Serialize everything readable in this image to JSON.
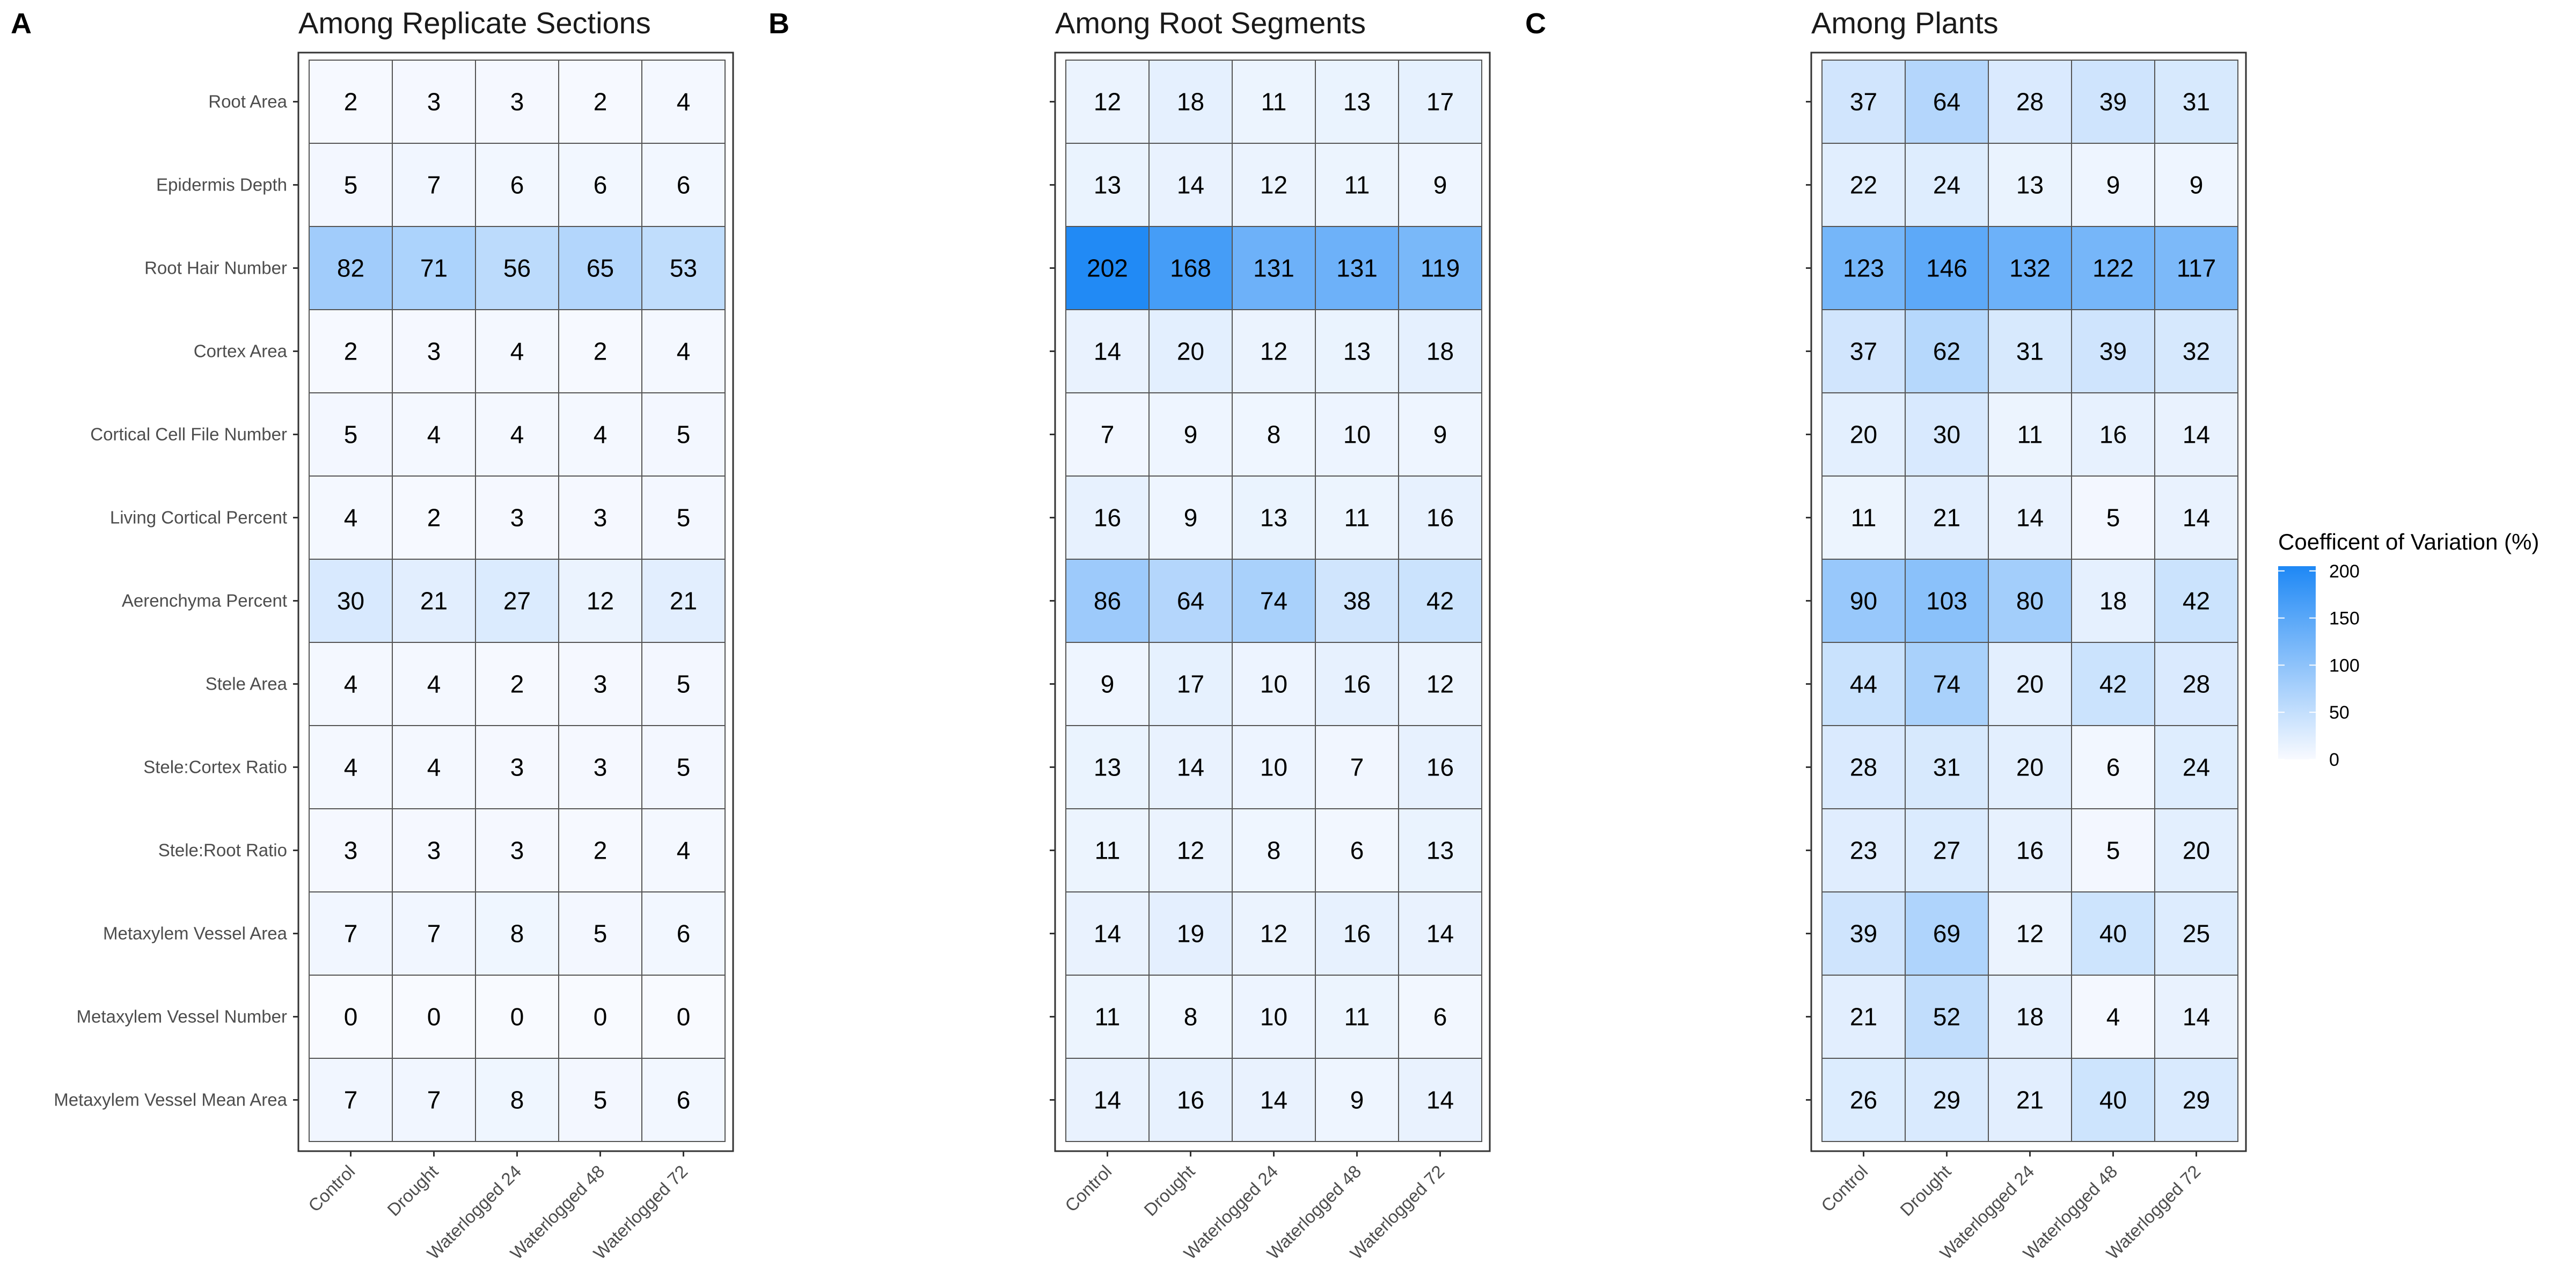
{
  "chart_data": [
    {
      "type": "heatmap",
      "panel": "A",
      "title": "Among Replicate Sections",
      "columns": [
        "Control",
        "Drought",
        "Waterlogged 24",
        "Waterlogged 48",
        "Waterlogged 72"
      ],
      "rows": [
        "Root Area",
        "Epidermis Depth",
        "Root Hair Number",
        "Cortex Area",
        "Cortical Cell File Number",
        "Living Cortical Percent",
        "Aerenchyma Percent",
        "Stele Area",
        "Stele:Cortex Ratio",
        "Stele:Root Ratio",
        "Metaxylem Vessel Area",
        "Metaxylem Vessel Number",
        "Metaxylem Vessel Mean Area"
      ],
      "values": [
        [
          2,
          3,
          3,
          2,
          4
        ],
        [
          5,
          7,
          6,
          6,
          6
        ],
        [
          82,
          71,
          56,
          65,
          53
        ],
        [
          2,
          3,
          4,
          2,
          4
        ],
        [
          5,
          4,
          4,
          4,
          5
        ],
        [
          4,
          2,
          3,
          3,
          5
        ],
        [
          30,
          21,
          27,
          12,
          21
        ],
        [
          4,
          4,
          2,
          3,
          5
        ],
        [
          4,
          4,
          3,
          3,
          5
        ],
        [
          3,
          3,
          3,
          2,
          4
        ],
        [
          7,
          7,
          8,
          5,
          6
        ],
        [
          0,
          0,
          0,
          0,
          0
        ],
        [
          7,
          7,
          8,
          5,
          6
        ]
      ]
    },
    {
      "type": "heatmap",
      "panel": "B",
      "title": "Among Root Segments",
      "columns": [
        "Control",
        "Drought",
        "Waterlogged 24",
        "Waterlogged 48",
        "Waterlogged 72"
      ],
      "rows": [
        "Root Area",
        "Epidermis Depth",
        "Root Hair Number",
        "Cortex Area",
        "Cortical Cell File Number",
        "Living Cortical Percent",
        "Aerenchyma Percent",
        "Stele Area",
        "Stele:Cortex Ratio",
        "Stele:Root Ratio",
        "Metaxylem Vessel Area",
        "Metaxylem Vessel Number",
        "Metaxylem Vessel Mean Area"
      ],
      "values": [
        [
          12,
          18,
          11,
          13,
          17
        ],
        [
          13,
          14,
          12,
          11,
          9
        ],
        [
          202,
          168,
          131,
          131,
          119
        ],
        [
          14,
          20,
          12,
          13,
          18
        ],
        [
          7,
          9,
          8,
          10,
          9
        ],
        [
          16,
          9,
          13,
          11,
          16
        ],
        [
          86,
          64,
          74,
          38,
          42
        ],
        [
          9,
          17,
          10,
          16,
          12
        ],
        [
          13,
          14,
          10,
          7,
          16
        ],
        [
          11,
          12,
          8,
          6,
          13
        ],
        [
          14,
          19,
          12,
          16,
          14
        ],
        [
          11,
          8,
          10,
          11,
          6
        ],
        [
          14,
          16,
          14,
          9,
          14
        ]
      ]
    },
    {
      "type": "heatmap",
      "panel": "C",
      "title": "Among Plants",
      "columns": [
        "Control",
        "Drought",
        "Waterlogged 24",
        "Waterlogged 48",
        "Waterlogged 72"
      ],
      "rows": [
        "Root Area",
        "Epidermis Depth",
        "Root Hair Number",
        "Cortex Area",
        "Cortical Cell File Number",
        "Living Cortical Percent",
        "Aerenchyma Percent",
        "Stele Area",
        "Stele:Cortex Ratio",
        "Stele:Root Ratio",
        "Metaxylem Vessel Area",
        "Metaxylem Vessel Number",
        "Metaxylem Vessel Mean Area"
      ],
      "values": [
        [
          37,
          64,
          28,
          39,
          31
        ],
        [
          22,
          24,
          13,
          9,
          9
        ],
        [
          123,
          146,
          132,
          122,
          117
        ],
        [
          37,
          62,
          31,
          39,
          32
        ],
        [
          20,
          30,
          11,
          16,
          14
        ],
        [
          11,
          21,
          14,
          5,
          14
        ],
        [
          90,
          103,
          80,
          18,
          42
        ],
        [
          44,
          74,
          20,
          42,
          28
        ],
        [
          28,
          31,
          20,
          6,
          24
        ],
        [
          23,
          27,
          16,
          5,
          20
        ],
        [
          39,
          69,
          12,
          40,
          25
        ],
        [
          21,
          52,
          18,
          4,
          14
        ],
        [
          26,
          29,
          21,
          40,
          29
        ]
      ]
    }
  ],
  "legend": {
    "title": "Coefficent of Variation (%)",
    "ticks": [
      0,
      50,
      100,
      150,
      200
    ],
    "range": [
      0,
      205
    ],
    "low_color": "#ffffff",
    "high_color": "#1e88f5"
  },
  "colors": {
    "grid": "#555555",
    "panel_border": "#333333"
  }
}
